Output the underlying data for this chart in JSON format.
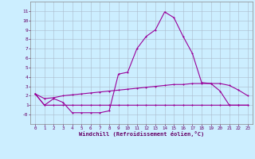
{
  "xlabel": "Windchill (Refroidissement éolien,°C)",
  "bg_color": "#cceeff",
  "grid_color": "#aabbcc",
  "line_color": "#990099",
  "xlim": [
    -0.5,
    23.5
  ],
  "ylim": [
    -1.0,
    12.0
  ],
  "yticks": [
    0,
    1,
    2,
    3,
    4,
    5,
    6,
    7,
    8,
    9,
    10,
    11
  ],
  "ytick_labels": [
    "-0",
    "1",
    "2",
    "3",
    "4",
    "5",
    "6",
    "7",
    "8",
    "9",
    "10",
    "11"
  ],
  "xticks": [
    0,
    1,
    2,
    3,
    4,
    5,
    6,
    7,
    8,
    9,
    10,
    11,
    12,
    13,
    14,
    15,
    16,
    17,
    18,
    19,
    20,
    21,
    22,
    23
  ],
  "line1_x": [
    0,
    1,
    2,
    3,
    4,
    5,
    6,
    7,
    8,
    9,
    10,
    11,
    12,
    13,
    14,
    15,
    16,
    17,
    18,
    19,
    20,
    21,
    22,
    23
  ],
  "line1_y": [
    2.2,
    1.0,
    1.7,
    1.3,
    0.2,
    0.2,
    0.2,
    0.2,
    0.4,
    4.3,
    4.5,
    7.0,
    8.3,
    9.0,
    10.9,
    10.3,
    8.3,
    6.5,
    3.4,
    3.3,
    2.5,
    1.0,
    1.0,
    1.0
  ],
  "line2_x": [
    0,
    1,
    2,
    3,
    4,
    5,
    6,
    7,
    8,
    9,
    10,
    11,
    12,
    13,
    14,
    15,
    16,
    17,
    18,
    19,
    20,
    21,
    22,
    23
  ],
  "line2_y": [
    2.2,
    1.7,
    1.8,
    2.0,
    2.1,
    2.2,
    2.3,
    2.4,
    2.5,
    2.6,
    2.7,
    2.8,
    2.9,
    3.0,
    3.1,
    3.2,
    3.2,
    3.3,
    3.3,
    3.3,
    3.3,
    3.1,
    2.6,
    2.0
  ],
  "line3_x": [
    0,
    1,
    2,
    3,
    4,
    5,
    6,
    7,
    8,
    9,
    10,
    11,
    12,
    13,
    14,
    15,
    16,
    17,
    18,
    19,
    20,
    21,
    22,
    23
  ],
  "line3_y": [
    2.2,
    1.0,
    1.0,
    1.0,
    1.0,
    1.0,
    1.0,
    1.0,
    1.0,
    1.0,
    1.0,
    1.0,
    1.0,
    1.0,
    1.0,
    1.0,
    1.0,
    1.0,
    1.0,
    1.0,
    1.0,
    1.0,
    1.0,
    1.0
  ]
}
